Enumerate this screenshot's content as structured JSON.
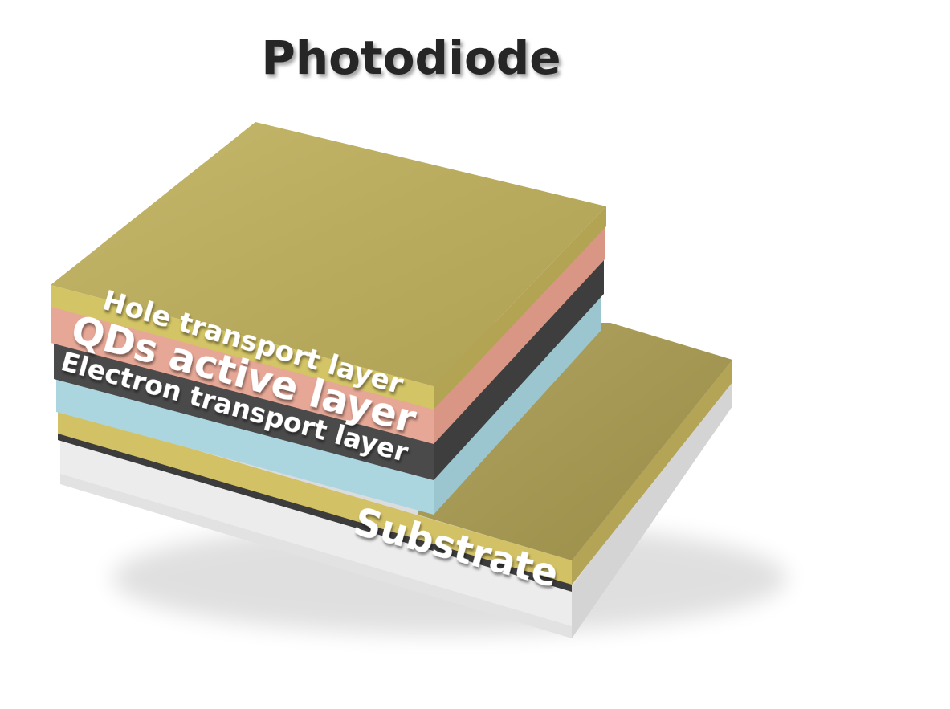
{
  "title": "Photodiode",
  "layers": {
    "hole_transport": {
      "label": "Hole transport layer",
      "color": "#c3b45e"
    },
    "qds_active": {
      "label": "QDs active layer",
      "color": "#e6a796"
    },
    "electron_blocking": {
      "label": "",
      "color": "#4a4a4a"
    },
    "electron_transport": {
      "label": "Electron transport layer",
      "color": "#acd6df"
    },
    "bottom_electrode": {
      "label": "",
      "color": "#c8b862"
    },
    "substrate": {
      "label": "Substrate",
      "color": "#eaeaea"
    }
  }
}
